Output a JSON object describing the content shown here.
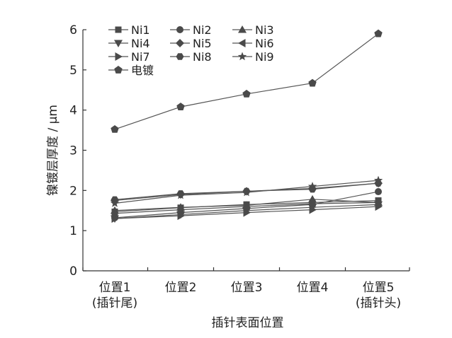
{
  "chart_data": {
    "type": "line",
    "xlabel": "插针表面位置",
    "ylabel": "镍镀层厚度 / μm",
    "ylim": [
      0,
      6
    ],
    "yticks": [
      0,
      1,
      2,
      3,
      4,
      5,
      6
    ],
    "grid": false,
    "legend_placement": "top-left",
    "categories": [
      {
        "line1": "位置1",
        "line2": "(插针尾)"
      },
      {
        "line1": "位置2",
        "line2": ""
      },
      {
        "line1": "位置3",
        "line2": ""
      },
      {
        "line1": "位置4",
        "line2": ""
      },
      {
        "line1": "位置5",
        "line2": "(插针头)"
      }
    ],
    "series": [
      {
        "name": "Ni1",
        "marker": "square",
        "values": [
          1.47,
          1.57,
          1.65,
          1.7,
          1.75
        ]
      },
      {
        "name": "Ni2",
        "marker": "circle",
        "values": [
          1.32,
          1.45,
          1.55,
          1.65,
          1.97
        ]
      },
      {
        "name": "Ni3",
        "marker": "triangle-up",
        "values": [
          1.5,
          1.58,
          1.63,
          1.78,
          1.7
        ]
      },
      {
        "name": "Ni4",
        "marker": "triangle-down",
        "values": [
          1.3,
          1.4,
          1.5,
          1.58,
          1.65
        ]
      },
      {
        "name": "Ni5",
        "marker": "diamond",
        "values": [
          1.75,
          1.9,
          1.98,
          2.05,
          2.18
        ]
      },
      {
        "name": "Ni6",
        "marker": "triangle-left",
        "values": [
          1.43,
          1.52,
          1.6,
          1.67,
          1.7
        ]
      },
      {
        "name": "Ni7",
        "marker": "triangle-right",
        "values": [
          1.3,
          1.37,
          1.45,
          1.52,
          1.6
        ]
      },
      {
        "name": "Ni8",
        "marker": "hexagon",
        "values": [
          1.77,
          1.92,
          1.98,
          2.03,
          2.18
        ]
      },
      {
        "name": "Ni9",
        "marker": "star",
        "values": [
          1.68,
          1.88,
          1.95,
          2.1,
          2.25
        ]
      },
      {
        "name": "电镀",
        "marker": "pentagon",
        "values": [
          3.52,
          4.08,
          4.4,
          4.67,
          5.9
        ]
      }
    ],
    "colors": {
      "line": "#555555",
      "marker": "#4a4a4a",
      "axis": "#333333"
    }
  }
}
